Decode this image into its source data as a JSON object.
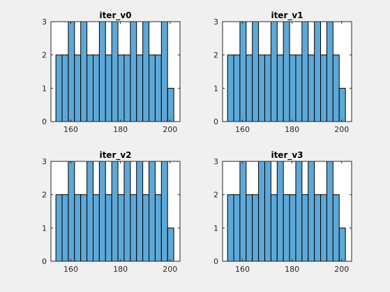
{
  "chart_data": [
    {
      "type": "bar",
      "title": "iter_v0",
      "xlim": [
        152,
        204
      ],
      "ylim": [
        0,
        3
      ],
      "xticks": [
        160,
        180,
        200
      ],
      "yticks": [
        0,
        1,
        2,
        3
      ],
      "bin_edges": [
        154,
        156.5,
        159,
        161.5,
        164,
        166.5,
        169,
        171.5,
        174,
        176.5,
        179,
        181.5,
        184,
        186.5,
        189,
        191.5,
        194,
        196.5,
        199,
        201.5
      ],
      "values": [
        2,
        2,
        3,
        2,
        3,
        2,
        2,
        3,
        2,
        3,
        2,
        2,
        3,
        2,
        3,
        2,
        2,
        3,
        1
      ]
    },
    {
      "type": "bar",
      "title": "iter_v1",
      "xlim": [
        152,
        204
      ],
      "ylim": [
        0,
        3
      ],
      "xticks": [
        160,
        180,
        200
      ],
      "yticks": [
        0,
        1,
        2,
        3
      ],
      "bin_edges": [
        154,
        156.5,
        159,
        161.5,
        164,
        166.5,
        169,
        171.5,
        174,
        176.5,
        179,
        181.5,
        184,
        186.5,
        189,
        191.5,
        194,
        196.5,
        199,
        201.5
      ],
      "values": [
        2,
        2,
        3,
        2,
        3,
        2,
        2,
        3,
        2,
        3,
        2,
        2,
        3,
        2,
        3,
        2,
        3,
        2,
        1
      ]
    },
    {
      "type": "bar",
      "title": "iter_v2",
      "xlim": [
        152,
        204
      ],
      "ylim": [
        0,
        3
      ],
      "xticks": [
        160,
        180,
        200
      ],
      "yticks": [
        0,
        1,
        2,
        3
      ],
      "bin_edges": [
        154,
        156.5,
        159,
        161.5,
        164,
        166.5,
        169,
        171.5,
        174,
        176.5,
        179,
        181.5,
        184,
        186.5,
        189,
        191.5,
        194,
        196.5,
        199,
        201.5
      ],
      "values": [
        2,
        2,
        3,
        2,
        2,
        3,
        2,
        3,
        2,
        3,
        2,
        3,
        2,
        3,
        2,
        3,
        2,
        3,
        1
      ]
    },
    {
      "type": "bar",
      "title": "iter_v3",
      "xlim": [
        152,
        204
      ],
      "ylim": [
        0,
        3
      ],
      "xticks": [
        160,
        180,
        200
      ],
      "yticks": [
        0,
        1,
        2,
        3
      ],
      "bin_edges": [
        154,
        156.5,
        159,
        161.5,
        164,
        166.5,
        169,
        171.5,
        174,
        176.5,
        179,
        181.5,
        184,
        186.5,
        189,
        191.5,
        194,
        196.5,
        199,
        201.5
      ],
      "values": [
        2,
        2,
        3,
        2,
        2,
        3,
        3,
        2,
        3,
        2,
        2,
        3,
        2,
        3,
        2,
        2,
        3,
        2,
        1
      ]
    }
  ]
}
